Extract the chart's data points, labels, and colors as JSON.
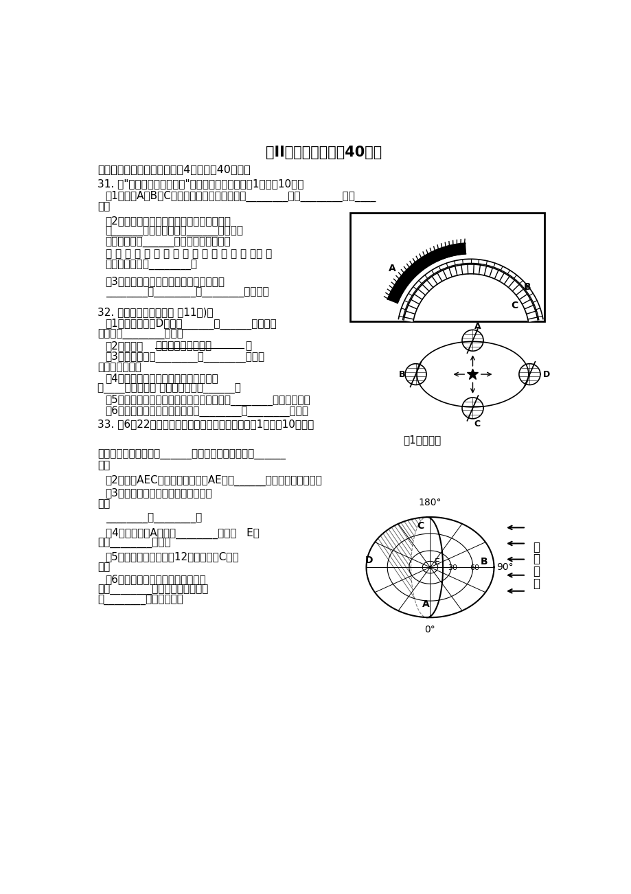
{
  "bg_color": "#ffffff",
  "title": "第II卷（综合题，共40分）",
  "section": "二、读图分析题（本大题共有4小题，共40分。）",
  "q31": "31. 读“太阳外部结构层次图”，回答下列问题（每空1分，共10分）",
  "q32": "32. 读右图回答下列问题 共11分）：",
  "q33": "33. 读6月22日太阳照射图。完成下列填空（每小题 1分，共10分）："
}
